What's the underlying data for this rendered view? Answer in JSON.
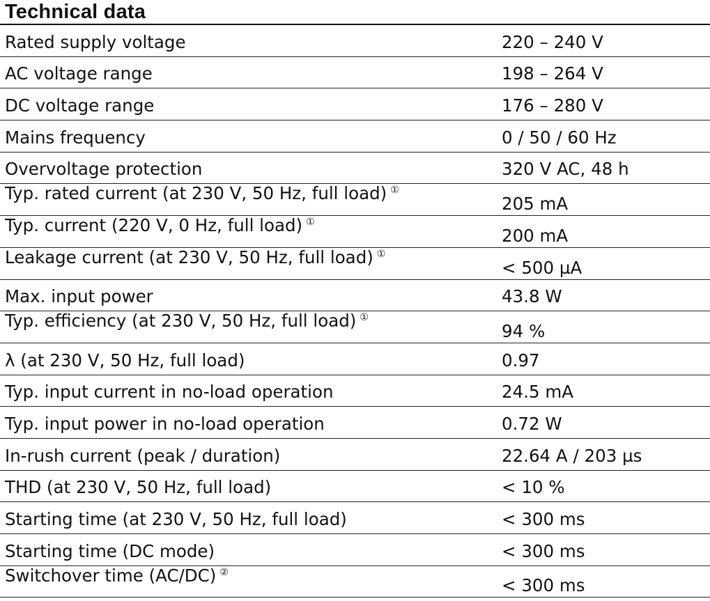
{
  "title": "Technical data",
  "rows": [
    {
      "label": "Rated supply voltage",
      "note": "",
      "value": "220 – 240 V"
    },
    {
      "label": "AC voltage range",
      "note": "",
      "value": "198 – 264 V"
    },
    {
      "label": "DC voltage range",
      "note": "",
      "value": "176 – 280 V"
    },
    {
      "label": "Mains frequency",
      "note": "",
      "value": "0 / 50 / 60 Hz"
    },
    {
      "label": "Overvoltage protection",
      "note": "",
      "value": "320 V AC, 48 h"
    },
    {
      "label": "Typ. rated current (at 230 V, 50 Hz, full load)",
      "note": "①",
      "value": "205 mA"
    },
    {
      "label": "Typ. current (220 V, 0 Hz, full load)",
      "note": "①",
      "value": "200 mA"
    },
    {
      "label": "Leakage current (at 230 V, 50 Hz, full load)",
      "note": "①",
      "value": "< 500 µA"
    },
    {
      "label": "Max. input power",
      "note": "",
      "value": "43.8 W"
    },
    {
      "label": "Typ. efficiency (at 230 V, 50 Hz, full load)",
      "note": "①",
      "value": "94 %"
    },
    {
      "label": "λ (at 230 V, 50 Hz, full load)",
      "note": "",
      "value": "0.97"
    },
    {
      "label": "Typ. input current in no-load operation",
      "note": "",
      "value": "24.5 mA"
    },
    {
      "label": "Typ. input power in no-load operation",
      "note": "",
      "value": "0.72 W"
    },
    {
      "label": "In-rush current (peak / duration)",
      "note": "",
      "value": "22.64 A / 203 µs"
    },
    {
      "label": "THD (at 230 V, 50 Hz, full load)",
      "note": "",
      "value": "< 10 %"
    },
    {
      "label": "Starting time (at 230 V, 50 Hz, full load)",
      "note": "",
      "value": "< 300 ms"
    },
    {
      "label": "Starting time (DC mode)",
      "note": "",
      "value": "< 300 ms"
    },
    {
      "label": "Switchover time (AC/DC)",
      "note": "②",
      "value": "< 300 ms"
    }
  ]
}
